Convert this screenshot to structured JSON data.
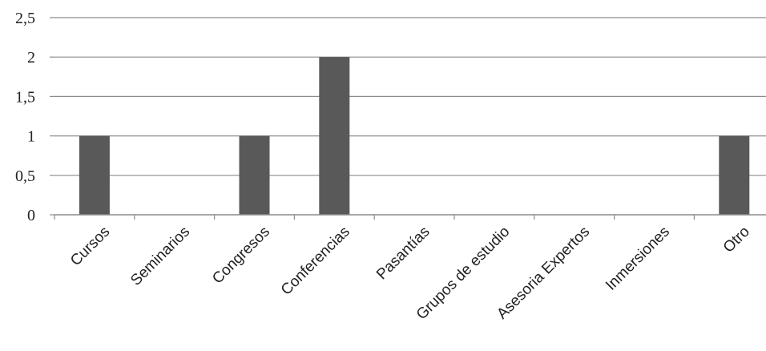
{
  "chart_data": {
    "type": "bar",
    "categories": [
      "Cursos",
      "Seminarios",
      "Congresos",
      "Conferencias",
      "Pasantías",
      "Grupos de estudio",
      "Asesoria Expertos",
      "Inmersiones",
      "Otro"
    ],
    "values": [
      1,
      0,
      1,
      2,
      0,
      0,
      0,
      0,
      1
    ],
    "ylim": [
      0,
      2.5
    ],
    "yticks": [
      "0",
      "0,5",
      "1",
      "1,5",
      "2",
      "2,5"
    ],
    "grid": true,
    "legend": "none",
    "bar_color": "#595959",
    "grid_color": "#8c8c8c"
  }
}
